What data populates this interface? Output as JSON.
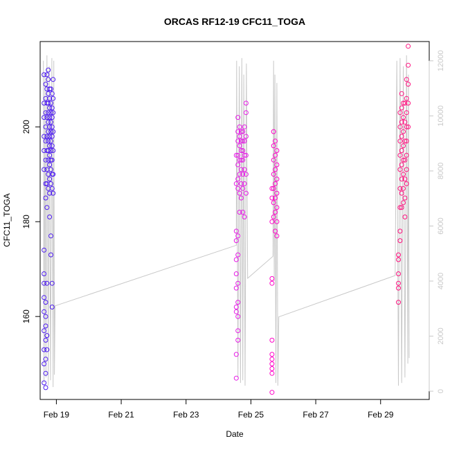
{
  "chart_data": {
    "type": "scatter",
    "title": "ORCAS RF12-19 CFC11_TOGA",
    "xlabel": "Date",
    "ylabel": "CFC11_TOGA",
    "x_ticks": [
      "Feb 19",
      "Feb 21",
      "Feb 23",
      "Feb 25",
      "Feb 27",
      "Feb 29"
    ],
    "x_tick_days": [
      19,
      21,
      23,
      25,
      27,
      29
    ],
    "y_ticks": [
      160,
      180,
      200
    ],
    "y2_ticks": [
      0,
      2000,
      4000,
      6000,
      8000,
      10000,
      12000
    ],
    "xlim": [
      18.5,
      30.5
    ],
    "ylim": [
      142.5,
      218
    ],
    "y2lim": [
      -300,
      12700
    ],
    "grid": false,
    "legend": "none",
    "colors": {
      "rf12": "#4b19f0",
      "rf15": "#e61ae6",
      "rf16": "#ff00c8",
      "rf19": "#ff1480",
      "altitude": "#c8c8c8"
    },
    "series": [
      {
        "color": "#4b19f0",
        "points": [
          [
            18.62,
            211
          ],
          [
            18.62,
            205
          ],
          [
            18.62,
            202
          ],
          [
            18.62,
            198
          ],
          [
            18.62,
            195
          ],
          [
            18.62,
            191
          ],
          [
            18.62,
            174
          ],
          [
            18.62,
            169
          ],
          [
            18.62,
            167
          ],
          [
            18.62,
            164
          ],
          [
            18.62,
            161
          ],
          [
            18.62,
            157
          ],
          [
            18.62,
            153
          ],
          [
            18.62,
            150
          ],
          [
            18.62,
            146
          ],
          [
            18.67,
            209
          ],
          [
            18.67,
            206
          ],
          [
            18.67,
            203
          ],
          [
            18.67,
            200
          ],
          [
            18.67,
            197
          ],
          [
            18.67,
            193
          ],
          [
            18.67,
            188
          ],
          [
            18.67,
            185
          ],
          [
            18.67,
            163
          ],
          [
            18.67,
            160
          ],
          [
            18.67,
            158
          ],
          [
            18.67,
            155
          ],
          [
            18.67,
            151
          ],
          [
            18.67,
            148
          ],
          [
            18.67,
            145
          ],
          [
            18.71,
            211
          ],
          [
            18.71,
            208
          ],
          [
            18.71,
            205
          ],
          [
            18.71,
            202
          ],
          [
            18.71,
            198
          ],
          [
            18.71,
            195
          ],
          [
            18.71,
            191
          ],
          [
            18.71,
            188
          ],
          [
            18.71,
            183
          ],
          [
            18.71,
            167
          ],
          [
            18.71,
            156
          ],
          [
            18.71,
            153
          ],
          [
            18.75,
            212
          ],
          [
            18.75,
            210
          ],
          [
            18.75,
            207
          ],
          [
            18.75,
            205
          ],
          [
            18.75,
            203
          ],
          [
            18.75,
            201
          ],
          [
            18.75,
            199
          ],
          [
            18.75,
            197
          ],
          [
            18.75,
            195
          ],
          [
            18.75,
            193
          ],
          [
            18.75,
            190
          ],
          [
            18.75,
            187
          ],
          [
            18.79,
            208
          ],
          [
            18.79,
            206
          ],
          [
            18.79,
            204
          ],
          [
            18.79,
            202
          ],
          [
            18.79,
            200
          ],
          [
            18.79,
            198
          ],
          [
            18.79,
            196
          ],
          [
            18.79,
            194
          ],
          [
            18.79,
            192
          ],
          [
            18.79,
            189
          ],
          [
            18.79,
            186
          ],
          [
            18.79,
            181
          ],
          [
            18.83,
            208
          ],
          [
            18.83,
            205
          ],
          [
            18.83,
            203
          ],
          [
            18.83,
            201
          ],
          [
            18.83,
            199
          ],
          [
            18.83,
            197
          ],
          [
            18.83,
            195
          ],
          [
            18.83,
            193
          ],
          [
            18.83,
            191
          ],
          [
            18.83,
            188
          ],
          [
            18.83,
            177
          ],
          [
            18.83,
            173
          ],
          [
            18.87,
            207
          ],
          [
            18.87,
            204
          ],
          [
            18.87,
            202
          ],
          [
            18.87,
            200
          ],
          [
            18.87,
            198
          ],
          [
            18.87,
            196
          ],
          [
            18.87,
            193
          ],
          [
            18.87,
            190
          ],
          [
            18.87,
            187
          ],
          [
            18.87,
            167
          ],
          [
            18.87,
            162
          ],
          [
            18.9,
            210
          ],
          [
            18.9,
            206
          ],
          [
            18.9,
            203
          ],
          [
            18.9,
            199
          ],
          [
            18.9,
            195
          ],
          [
            18.9,
            190
          ],
          [
            18.9,
            186
          ]
        ]
      },
      {
        "color": "#e61ae6",
        "points": [
          [
            24.55,
            194
          ],
          [
            24.55,
            188
          ],
          [
            24.55,
            178
          ],
          [
            24.55,
            176
          ],
          [
            24.55,
            172
          ],
          [
            24.55,
            169
          ],
          [
            24.55,
            166
          ],
          [
            24.55,
            162
          ],
          [
            24.55,
            161
          ],
          [
            24.55,
            152
          ],
          [
            24.55,
            147
          ],
          [
            24.6,
            202
          ],
          [
            24.6,
            199
          ],
          [
            24.6,
            197
          ],
          [
            24.6,
            194
          ],
          [
            24.6,
            192
          ],
          [
            24.6,
            189
          ],
          [
            24.6,
            187
          ],
          [
            24.6,
            177
          ],
          [
            24.6,
            173
          ],
          [
            24.6,
            167
          ],
          [
            24.6,
            163
          ],
          [
            24.6,
            160
          ],
          [
            24.6,
            157
          ],
          [
            24.6,
            155
          ],
          [
            24.65,
            200
          ],
          [
            24.65,
            198
          ],
          [
            24.65,
            196
          ],
          [
            24.65,
            193
          ],
          [
            24.65,
            190
          ],
          [
            24.65,
            186
          ],
          [
            24.65,
            182
          ],
          [
            24.7,
            199
          ],
          [
            24.7,
            197
          ],
          [
            24.7,
            195
          ],
          [
            24.7,
            193
          ],
          [
            24.7,
            191
          ],
          [
            24.7,
            188
          ],
          [
            24.7,
            185
          ],
          [
            24.75,
            199
          ],
          [
            24.75,
            197
          ],
          [
            24.75,
            195
          ],
          [
            24.75,
            193
          ],
          [
            24.75,
            190
          ],
          [
            24.75,
            187
          ],
          [
            24.75,
            182
          ],
          [
            24.8,
            200
          ],
          [
            24.8,
            197
          ],
          [
            24.8,
            194
          ],
          [
            24.8,
            191
          ],
          [
            24.8,
            188
          ],
          [
            24.8,
            181
          ],
          [
            24.85,
            205
          ],
          [
            24.85,
            203
          ],
          [
            24.85,
            198
          ],
          [
            24.85,
            194
          ],
          [
            24.85,
            190
          ],
          [
            24.85,
            186
          ]
        ]
      },
      {
        "color": "#ff00c8",
        "points": [
          [
            25.65,
            187
          ],
          [
            25.65,
            185
          ],
          [
            25.65,
            180
          ],
          [
            25.65,
            168
          ],
          [
            25.65,
            167
          ],
          [
            25.65,
            155
          ],
          [
            25.65,
            152
          ],
          [
            25.65,
            151
          ],
          [
            25.65,
            150
          ],
          [
            25.65,
            149
          ],
          [
            25.65,
            148
          ],
          [
            25.65,
            144
          ],
          [
            25.7,
            199
          ],
          [
            25.7,
            196
          ],
          [
            25.7,
            193
          ],
          [
            25.7,
            190
          ],
          [
            25.7,
            187
          ],
          [
            25.7,
            184
          ],
          [
            25.7,
            181
          ],
          [
            25.75,
            197
          ],
          [
            25.75,
            194
          ],
          [
            25.75,
            191
          ],
          [
            25.75,
            188
          ],
          [
            25.75,
            185
          ],
          [
            25.75,
            182
          ],
          [
            25.75,
            178
          ],
          [
            25.8,
            195
          ],
          [
            25.8,
            192
          ],
          [
            25.8,
            189
          ],
          [
            25.8,
            186
          ],
          [
            25.8,
            183
          ],
          [
            25.8,
            180
          ],
          [
            25.8,
            177
          ]
        ]
      },
      {
        "color": "#ff1480",
        "points": [
          [
            29.55,
            173
          ],
          [
            29.55,
            172
          ],
          [
            29.55,
            169
          ],
          [
            29.55,
            167
          ],
          [
            29.55,
            166
          ],
          [
            29.55,
            163
          ],
          [
            29.6,
            203
          ],
          [
            29.6,
            200
          ],
          [
            29.6,
            197
          ],
          [
            29.6,
            194
          ],
          [
            29.6,
            191
          ],
          [
            29.6,
            187
          ],
          [
            29.6,
            183
          ],
          [
            29.6,
            178
          ],
          [
            29.6,
            176
          ],
          [
            29.65,
            207
          ],
          [
            29.65,
            204
          ],
          [
            29.65,
            201
          ],
          [
            29.65,
            198
          ],
          [
            29.65,
            195
          ],
          [
            29.65,
            192
          ],
          [
            29.65,
            189
          ],
          [
            29.65,
            186
          ],
          [
            29.65,
            183
          ],
          [
            29.7,
            205
          ],
          [
            29.7,
            202
          ],
          [
            29.7,
            199
          ],
          [
            29.7,
            196
          ],
          [
            29.7,
            193
          ],
          [
            29.7,
            190
          ],
          [
            29.7,
            187
          ],
          [
            29.7,
            184
          ],
          [
            29.75,
            205
          ],
          [
            29.75,
            201
          ],
          [
            29.75,
            197
          ],
          [
            29.75,
            193
          ],
          [
            29.75,
            189
          ],
          [
            29.75,
            185
          ],
          [
            29.75,
            181
          ],
          [
            29.8,
            210
          ],
          [
            29.8,
            206
          ],
          [
            29.8,
            203
          ],
          [
            29.8,
            200
          ],
          [
            29.8,
            197
          ],
          [
            29.8,
            194
          ],
          [
            29.8,
            191
          ],
          [
            29.8,
            188
          ],
          [
            29.85,
            217
          ],
          [
            29.85,
            213
          ],
          [
            29.85,
            209
          ],
          [
            29.85,
            205
          ],
          [
            29.85,
            200
          ]
        ]
      }
    ],
    "altitude_line": [
      [
        18.6,
        12000
      ],
      [
        18.62,
        300
      ],
      [
        18.65,
        11500
      ],
      [
        18.68,
        500
      ],
      [
        18.71,
        12200
      ],
      [
        18.75,
        200
      ],
      [
        18.78,
        11800
      ],
      [
        18.82,
        400
      ],
      [
        18.86,
        12100
      ],
      [
        18.9,
        150
      ],
      [
        18.92,
        12000
      ],
      [
        18.94,
        600
      ],
      [
        18.96,
        3100
      ],
      [
        24.55,
        5300
      ],
      [
        24.56,
        12000
      ],
      [
        24.6,
        500
      ],
      [
        24.64,
        11800
      ],
      [
        24.68,
        300
      ],
      [
        24.72,
        12100
      ],
      [
        24.75,
        400
      ],
      [
        24.78,
        11500
      ],
      [
        24.82,
        200
      ],
      [
        24.86,
        11900
      ],
      [
        24.9,
        4100
      ],
      [
        25.68,
        4900
      ],
      [
        25.7,
        12000
      ],
      [
        25.72,
        4000
      ],
      [
        25.74,
        11500
      ],
      [
        25.77,
        300
      ],
      [
        25.8,
        11200
      ],
      [
        25.83,
        200
      ],
      [
        25.86,
        2700
      ],
      [
        29.45,
        4200
      ],
      [
        29.5,
        12000
      ],
      [
        29.55,
        200
      ],
      [
        29.6,
        12100
      ],
      [
        29.65,
        300
      ],
      [
        29.7,
        11800
      ],
      [
        29.75,
        500
      ],
      [
        29.8,
        12200
      ],
      [
        29.84,
        1000
      ],
      [
        29.86,
        11500
      ],
      [
        29.88,
        1200
      ]
    ]
  }
}
